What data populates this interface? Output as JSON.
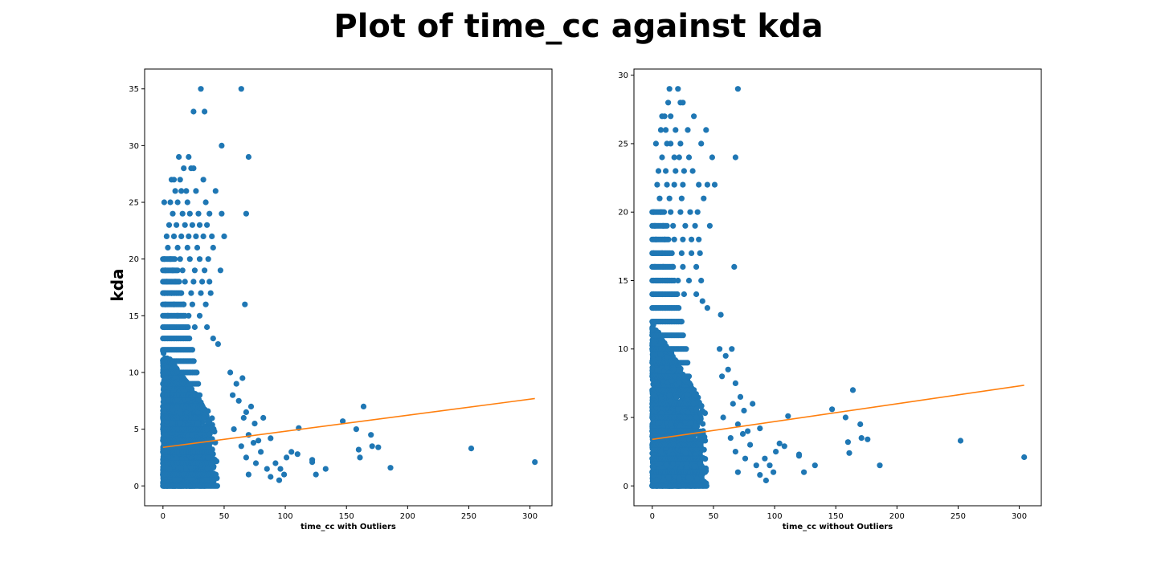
{
  "figure": {
    "suptitle": "Plot of time_cc against kda"
  },
  "colors": {
    "points": "#1f77b4",
    "fit_line": "#ff7f0e",
    "frame": "#000000",
    "background": "#ffffff"
  },
  "chart_data": [
    {
      "type": "scatter",
      "xlabel": "time_cc with Outliers",
      "ylabel": "kda",
      "xlim": [
        -15,
        318
      ],
      "ylim": [
        -1.75,
        36.75
      ],
      "xticks": [
        0,
        50,
        100,
        150,
        200,
        250,
        300
      ],
      "yticks": [
        0,
        5,
        10,
        15,
        20,
        25,
        30,
        35
      ],
      "grid": false,
      "series": [
        {
          "kind": "points",
          "density_core": {
            "x_max": 45,
            "y_max": 12
          },
          "points": [
            [
              31,
              35
            ],
            [
              64,
              35
            ],
            [
              25,
              33
            ],
            [
              34,
              33
            ],
            [
              48,
              30
            ],
            [
              70,
              29
            ],
            [
              13,
              29
            ],
            [
              21,
              29
            ],
            [
              17,
              28
            ],
            [
              23,
              28
            ],
            [
              25,
              28
            ],
            [
              7,
              27
            ],
            [
              9,
              27
            ],
            [
              14,
              27
            ],
            [
              33,
              27
            ],
            [
              10,
              26
            ],
            [
              15,
              26
            ],
            [
              19,
              26
            ],
            [
              27,
              26
            ],
            [
              43,
              26
            ],
            [
              1,
              25
            ],
            [
              6,
              25
            ],
            [
              12,
              25
            ],
            [
              20,
              25
            ],
            [
              35,
              25
            ],
            [
              8,
              24
            ],
            [
              16,
              24
            ],
            [
              22,
              24
            ],
            [
              29,
              24
            ],
            [
              38,
              24
            ],
            [
              48,
              24
            ],
            [
              68,
              24
            ],
            [
              5,
              23
            ],
            [
              11,
              23
            ],
            [
              18,
              23
            ],
            [
              24,
              23
            ],
            [
              30,
              23
            ],
            [
              36,
              23
            ],
            [
              3,
              22
            ],
            [
              9,
              22
            ],
            [
              15,
              22
            ],
            [
              21,
              22
            ],
            [
              27,
              22
            ],
            [
              33,
              22
            ],
            [
              40,
              22
            ],
            [
              50,
              22
            ],
            [
              4,
              21
            ],
            [
              12,
              21
            ],
            [
              20,
              21
            ],
            [
              28,
              21
            ],
            [
              41,
              21
            ],
            [
              1,
              20
            ],
            [
              6,
              20
            ],
            [
              14,
              20
            ],
            [
              22,
              20
            ],
            [
              30,
              20
            ],
            [
              37,
              20
            ],
            [
              2,
              19
            ],
            [
              8,
              19
            ],
            [
              16,
              19
            ],
            [
              26,
              19
            ],
            [
              34,
              19
            ],
            [
              47,
              19
            ],
            [
              3,
              18
            ],
            [
              10,
              18
            ],
            [
              18,
              18
            ],
            [
              25,
              18
            ],
            [
              32,
              18
            ],
            [
              38,
              18
            ],
            [
              1,
              17
            ],
            [
              7,
              17
            ],
            [
              15,
              17
            ],
            [
              23,
              17
            ],
            [
              31,
              17
            ],
            [
              39,
              17
            ],
            [
              67,
              16
            ],
            [
              2,
              16
            ],
            [
              9,
              16
            ],
            [
              17,
              16
            ],
            [
              24,
              16
            ],
            [
              35,
              16
            ],
            [
              4,
              15
            ],
            [
              12,
              15
            ],
            [
              21,
              15
            ],
            [
              30,
              15
            ],
            [
              1,
              14
            ],
            [
              8,
              14
            ],
            [
              16,
              14
            ],
            [
              26,
              14
            ],
            [
              36,
              14
            ],
            [
              41,
              13
            ],
            [
              45,
              12.5
            ],
            [
              55,
              10
            ],
            [
              60,
              9
            ],
            [
              65,
              9.5
            ],
            [
              57,
              8
            ],
            [
              62,
              7.5
            ],
            [
              68,
              6.5
            ],
            [
              72,
              7
            ],
            [
              66,
              6
            ],
            [
              58,
              5
            ],
            [
              75,
              5.5
            ],
            [
              82,
              6
            ],
            [
              70,
              4.5
            ],
            [
              78,
              4
            ],
            [
              88,
              4.2
            ],
            [
              64,
              3.5
            ],
            [
              80,
              3
            ],
            [
              92,
              2
            ],
            [
              85,
              1.5
            ],
            [
              70,
              1
            ],
            [
              76,
              2
            ],
            [
              95,
              0.5
            ],
            [
              99,
              1
            ],
            [
              101,
              2.5
            ],
            [
              105,
              3
            ],
            [
              110,
              2.8
            ],
            [
              111,
              5.1
            ],
            [
              122,
              2.3
            ],
            [
              122,
              2.1
            ],
            [
              125,
              1
            ],
            [
              133,
              1.5
            ],
            [
              147,
              5.7
            ],
            [
              158,
              5
            ],
            [
              160,
              3.2
            ],
            [
              161,
              2.5
            ],
            [
              164,
              7
            ],
            [
              170,
              4.5
            ],
            [
              171,
              3.5
            ],
            [
              176,
              3.4
            ],
            [
              186,
              1.6
            ],
            [
              252,
              3.3
            ],
            [
              304,
              2.1
            ],
            [
              96,
              1.5
            ],
            [
              88,
              0.8
            ],
            [
              68,
              2.5
            ],
            [
              74,
              3.8
            ]
          ]
        },
        {
          "kind": "fit_line",
          "x": [
            0,
            304
          ],
          "y": [
            3.4,
            7.7
          ]
        }
      ]
    },
    {
      "type": "scatter",
      "xlabel": "time_cc without Outliers",
      "ylabel": "",
      "xlim": [
        -15,
        318
      ],
      "ylim": [
        -1.45,
        30.45
      ],
      "xticks": [
        0,
        50,
        100,
        150,
        200,
        250,
        300
      ],
      "yticks": [
        0,
        5,
        10,
        15,
        20,
        25,
        30
      ],
      "grid": false,
      "series": [
        {
          "kind": "points",
          "density_core": {
            "x_max": 45,
            "y_max": 12
          },
          "points": [
            [
              14,
              29
            ],
            [
              21,
              29
            ],
            [
              70,
              29
            ],
            [
              13,
              28
            ],
            [
              23,
              28
            ],
            [
              25,
              28
            ],
            [
              8,
              27
            ],
            [
              10,
              27
            ],
            [
              15,
              27
            ],
            [
              34,
              27
            ],
            [
              7,
              26
            ],
            [
              11,
              26
            ],
            [
              19,
              26
            ],
            [
              29,
              26
            ],
            [
              44,
              26
            ],
            [
              3,
              25
            ],
            [
              12,
              25
            ],
            [
              15,
              25
            ],
            [
              23,
              25
            ],
            [
              40,
              25
            ],
            [
              8,
              24
            ],
            [
              18,
              24
            ],
            [
              22,
              24
            ],
            [
              30,
              24
            ],
            [
              49,
              24
            ],
            [
              68,
              24
            ],
            [
              5,
              23
            ],
            [
              11,
              23
            ],
            [
              19,
              23
            ],
            [
              26,
              23
            ],
            [
              33,
              23
            ],
            [
              4,
              22
            ],
            [
              12,
              22
            ],
            [
              18,
              22
            ],
            [
              25,
              22
            ],
            [
              38,
              22
            ],
            [
              45,
              22
            ],
            [
              51,
              22
            ],
            [
              6,
              21
            ],
            [
              14,
              21
            ],
            [
              24,
              21
            ],
            [
              42,
              21
            ],
            [
              1,
              20
            ],
            [
              7,
              20
            ],
            [
              15,
              20
            ],
            [
              23,
              20
            ],
            [
              31,
              20
            ],
            [
              37,
              20
            ],
            [
              2,
              19
            ],
            [
              9,
              19
            ],
            [
              17,
              19
            ],
            [
              27,
              19
            ],
            [
              35,
              19
            ],
            [
              47,
              19
            ],
            [
              3,
              18
            ],
            [
              10,
              18
            ],
            [
              18,
              18
            ],
            [
              25,
              18
            ],
            [
              32,
              18
            ],
            [
              38,
              18
            ],
            [
              1,
              17
            ],
            [
              8,
              17
            ],
            [
              16,
              17
            ],
            [
              24,
              17
            ],
            [
              32,
              17
            ],
            [
              39,
              17
            ],
            [
              2,
              16
            ],
            [
              9,
              16
            ],
            [
              17,
              16
            ],
            [
              25,
              16
            ],
            [
              36,
              16
            ],
            [
              67,
              16
            ],
            [
              4,
              15
            ],
            [
              12,
              15
            ],
            [
              21,
              15
            ],
            [
              30,
              15
            ],
            [
              40,
              15
            ],
            [
              1,
              14
            ],
            [
              8,
              14
            ],
            [
              16,
              14
            ],
            [
              26,
              14
            ],
            [
              36,
              14
            ],
            [
              41,
              13.5
            ],
            [
              45,
              13
            ],
            [
              56,
              12.5
            ],
            [
              55,
              10
            ],
            [
              60,
              9.5
            ],
            [
              65,
              10
            ],
            [
              57,
              8
            ],
            [
              62,
              8.5
            ],
            [
              68,
              7.5
            ],
            [
              72,
              6.5
            ],
            [
              66,
              6
            ],
            [
              58,
              5
            ],
            [
              75,
              5.5
            ],
            [
              82,
              6
            ],
            [
              70,
              4.5
            ],
            [
              78,
              4
            ],
            [
              88,
              4.2
            ],
            [
              64,
              3.5
            ],
            [
              80,
              3
            ],
            [
              92,
              2
            ],
            [
              85,
              1.5
            ],
            [
              70,
              1
            ],
            [
              76,
              2
            ],
            [
              93,
              0.4
            ],
            [
              99,
              1
            ],
            [
              101,
              2.5
            ],
            [
              104,
              3.1
            ],
            [
              108,
              2.9
            ],
            [
              111,
              5.1
            ],
            [
              120,
              2.3
            ],
            [
              120,
              2.2
            ],
            [
              124,
              1
            ],
            [
              133,
              1.5
            ],
            [
              147,
              5.6
            ],
            [
              158,
              5
            ],
            [
              160,
              3.2
            ],
            [
              161,
              2.4
            ],
            [
              164,
              7
            ],
            [
              170,
              4.5
            ],
            [
              171,
              3.5
            ],
            [
              176,
              3.4
            ],
            [
              186,
              1.5
            ],
            [
              252,
              3.3
            ],
            [
              304,
              2.1
            ],
            [
              96,
              1.5
            ],
            [
              88,
              0.8
            ],
            [
              68,
              2.5
            ],
            [
              74,
              3.8
            ]
          ]
        },
        {
          "kind": "fit_line",
          "x": [
            0,
            304
          ],
          "y": [
            3.4,
            7.35
          ]
        }
      ]
    }
  ]
}
